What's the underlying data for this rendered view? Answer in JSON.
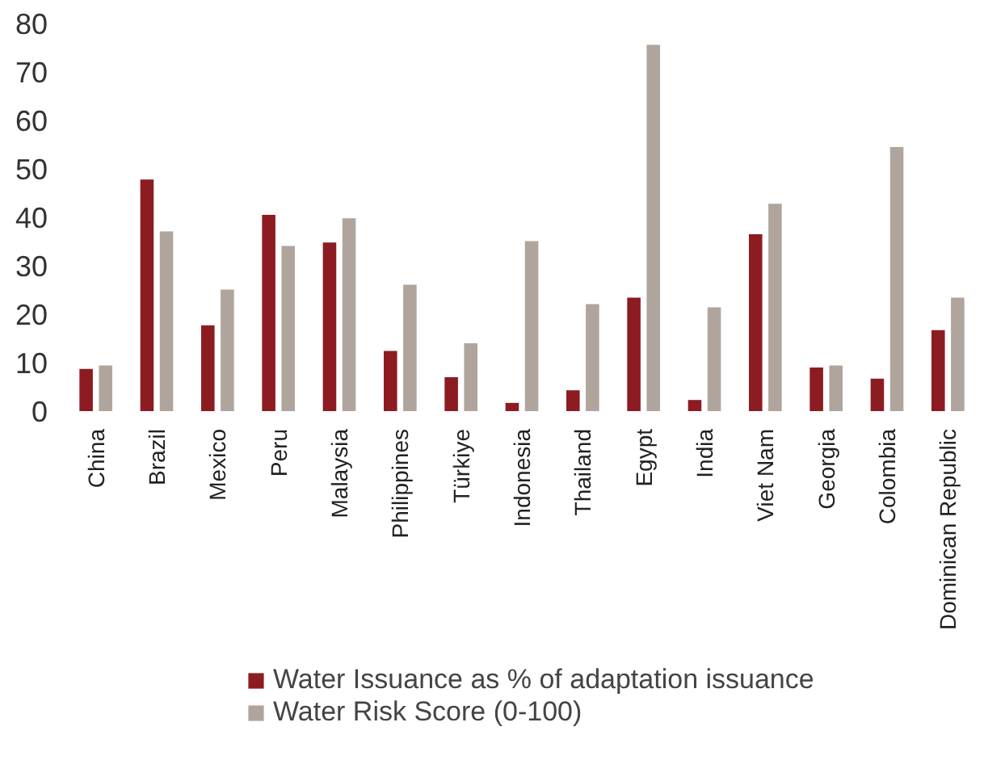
{
  "chart_data": {
    "type": "bar",
    "categories": [
      "China",
      "Brazil",
      "Mexico",
      "Peru",
      "Malaysia",
      "Philippines",
      "Türkiye",
      "Indonesia",
      "Thailand",
      "Egypt",
      "India",
      "Viet Nam",
      "Georgia",
      "Colombia",
      "Dominican Republic"
    ],
    "series": [
      {
        "name": "Water Issuance as % of adaptation issuance",
        "color": "#8c1c22",
        "values": [
          8.7,
          47.8,
          17.7,
          40.5,
          34.8,
          12.4,
          7,
          1.7,
          4.3,
          23.4,
          2.3,
          36.5,
          9,
          6.7,
          16.7
        ]
      },
      {
        "name": "Water Risk Score (0-100)",
        "color": "#b0a59d",
        "values": [
          9.4,
          37.1,
          25.1,
          34.1,
          39.8,
          26.1,
          14,
          35.1,
          22.1,
          75.6,
          21.4,
          42.8,
          9.4,
          54.5,
          23.4
        ]
      }
    ],
    "ylim": [
      0,
      80
    ],
    "yticks": [
      0,
      10,
      20,
      30,
      40,
      50,
      60,
      70,
      80
    ],
    "grid": false,
    "legend": "bottom"
  }
}
